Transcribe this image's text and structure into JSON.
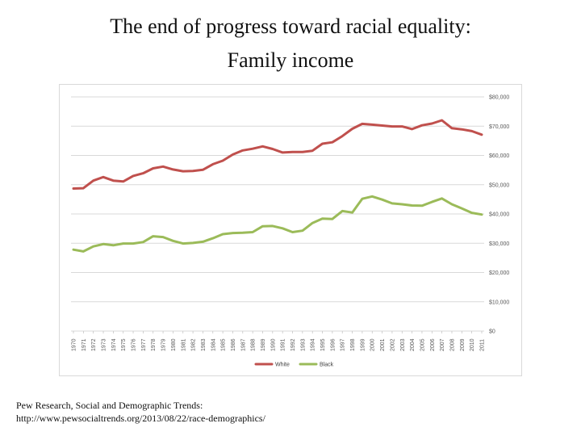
{
  "title": {
    "line1": "The end of progress toward racial equality:",
    "line2": "Family income"
  },
  "source": {
    "line1": "Pew Research, Social and Demographic Trends:",
    "line2": "http://www.pewsocialtrends.org/2013/08/22/race-demographics/"
  },
  "chart_data": {
    "type": "line",
    "title": "",
    "xlabel": "",
    "ylabel": "",
    "ylim": [
      0,
      80000
    ],
    "y_ticks": [
      0,
      10000,
      20000,
      30000,
      40000,
      50000,
      60000,
      70000,
      80000
    ],
    "y_tick_labels": [
      "$0",
      "$10,000",
      "$20,000",
      "$30,000",
      "$40,000",
      "$50,000",
      "$60,000",
      "$70,000",
      "$80,000"
    ],
    "grid": true,
    "legend_position": "bottom",
    "x": [
      1970,
      1971,
      1972,
      1973,
      1974,
      1975,
      1976,
      1977,
      1978,
      1979,
      1980,
      1981,
      1982,
      1983,
      1984,
      1985,
      1986,
      1987,
      1988,
      1989,
      1990,
      1991,
      1992,
      1993,
      1994,
      1995,
      1996,
      1997,
      1998,
      1999,
      2000,
      2001,
      2002,
      2003,
      2004,
      2005,
      2006,
      2007,
      2008,
      2009,
      2010,
      2011
    ],
    "series": [
      {
        "name": "White",
        "color": "#c0504d",
        "values": [
          48700,
          48800,
          51400,
          52600,
          51400,
          51100,
          53000,
          53900,
          55600,
          56200,
          55200,
          54600,
          54700,
          55100,
          57000,
          58200,
          60300,
          61700,
          62300,
          63100,
          62200,
          61000,
          61200,
          61200,
          61600,
          64000,
          64500,
          66600,
          69100,
          70800,
          70500,
          70200,
          69900,
          69900,
          69000,
          70300,
          70900,
          72000,
          69300,
          68900,
          68300,
          67100
        ]
      },
      {
        "name": "Black",
        "color": "#9bbb59",
        "values": [
          27800,
          27200,
          28900,
          29700,
          29300,
          29900,
          29900,
          30400,
          32400,
          32100,
          30800,
          29900,
          30100,
          30500,
          31700,
          33100,
          33500,
          33600,
          33800,
          35800,
          35900,
          35100,
          33800,
          34300,
          36900,
          38400,
          38300,
          41000,
          40500,
          45200,
          46000,
          44900,
          43600,
          43300,
          42900,
          42800,
          44100,
          45300,
          43300,
          41900,
          40400,
          39800
        ]
      }
    ]
  }
}
